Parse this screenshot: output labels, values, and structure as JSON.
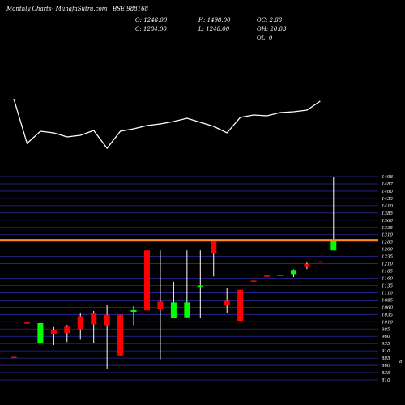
{
  "header": {
    "brand": "Monthly Charts",
    "site": "  -  MunafaSutra.com",
    "symbol": "BSE 988168",
    "open_line": "O: 1248.00",
    "close_line": "C: 1284.00",
    "high_line": "H: 1498.00",
    "low_line": "L: 1248.00",
    "oc_line": "OC: 2.88",
    "oh_line": "OH: 20.03",
    "ol_line": "OL: 0"
  },
  "colors": {
    "background": "#000000",
    "up": "#00ff00",
    "down": "#ff0000",
    "wick": "#ffffff",
    "grid": "#2a2a9e",
    "price_line": "#ff8c1a",
    "indicator": "#ffffff"
  },
  "chart_data": {
    "type": "candlestick",
    "y_ticks": [
      "1498",
      "1487",
      "1460",
      "1435",
      "1410",
      "1385",
      "1360",
      "1335",
      "1310",
      "1285",
      "1260",
      "1235",
      "1210",
      "1185",
      "1160",
      "1135",
      "1110",
      "1085",
      "1060",
      "1035",
      "1010",
      "985",
      "960",
      "935",
      "910",
      "885",
      "860",
      "835",
      "810"
    ],
    "partial_right_tick": "8",
    "ylim": [
      810,
      1510
    ],
    "current_price": 1284,
    "candles": [
      {
        "o": 888,
        "h": 888,
        "l": 885,
        "c": 885
      },
      {
        "o": 1004,
        "h": 1004,
        "l": 1001,
        "c": 1001
      },
      {
        "o": 935,
        "h": 1002,
        "l": 935,
        "c": 1002
      },
      {
        "o": 980,
        "h": 989,
        "l": 928,
        "c": 966
      },
      {
        "o": 990,
        "h": 996,
        "l": 938,
        "c": 969
      },
      {
        "o": 1025,
        "h": 1036,
        "l": 946,
        "c": 981
      },
      {
        "o": 1035,
        "h": 1043,
        "l": 936,
        "c": 998
      },
      {
        "o": 1030,
        "h": 1063,
        "l": 847,
        "c": 995
      },
      {
        "o": 1030,
        "h": 1030,
        "l": 893,
        "c": 893
      },
      {
        "o": 1040,
        "h": 1060,
        "l": 995,
        "c": 1046
      },
      {
        "o": 1248,
        "h": 1248,
        "l": 1040,
        "c": 1045
      },
      {
        "o": 1075,
        "h": 1248,
        "l": 880,
        "c": 1050
      },
      {
        "o": 1021,
        "h": 1142,
        "l": 1020,
        "c": 1072
      },
      {
        "o": 1022,
        "h": 1248,
        "l": 1020,
        "c": 1072
      },
      {
        "o": 1129,
        "h": 1248,
        "l": 1020,
        "c": 1129
      },
      {
        "o": 1284,
        "h": 1284,
        "l": 1160,
        "c": 1240
      },
      {
        "o": 1080,
        "h": 1120,
        "l": 1035,
        "c": 1065
      },
      {
        "o": 1115,
        "h": 1115,
        "l": 1010,
        "c": 1010
      },
      {
        "o": 1146,
        "h": 1146,
        "l": 1143,
        "c": 1143
      },
      {
        "o": 1163,
        "h": 1163,
        "l": 1160,
        "c": 1160
      },
      {
        "o": 1165,
        "h": 1165,
        "l": 1162,
        "c": 1162
      },
      {
        "o": 1168,
        "h": 1184,
        "l": 1158,
        "c": 1182
      },
      {
        "o": 1202,
        "h": 1207,
        "l": 1185,
        "c": 1192
      },
      {
        "o": 1211,
        "h": 1211,
        "l": 1208,
        "c": 1208
      },
      {
        "o": 1248,
        "h": 1498,
        "l": 1248,
        "c": 1284
      }
    ],
    "indicator_line": [
      122,
      177,
      162,
      164,
      169,
      167,
      161,
      183,
      162,
      159,
      155,
      153,
      150,
      146,
      151,
      156,
      164,
      145,
      142,
      143,
      139,
      138,
      136,
      125
    ]
  }
}
